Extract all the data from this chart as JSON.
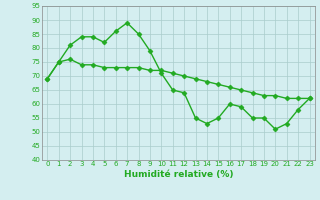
{
  "x": [
    0,
    1,
    2,
    3,
    4,
    5,
    6,
    7,
    8,
    9,
    10,
    11,
    12,
    13,
    14,
    15,
    16,
    17,
    18,
    19,
    20,
    21,
    22,
    23
  ],
  "line1": [
    69,
    75,
    81,
    84,
    84,
    82,
    86,
    89,
    85,
    79,
    71,
    65,
    64,
    55,
    53,
    55,
    60,
    59,
    55,
    55,
    51,
    53,
    58,
    62
  ],
  "line2": [
    69,
    75,
    76,
    74,
    74,
    73,
    73,
    73,
    73,
    72,
    72,
    71,
    70,
    69,
    68,
    67,
    66,
    65,
    64,
    63,
    63,
    62,
    62,
    62
  ],
  "line_color": "#22aa22",
  "bg_color": "#d4eef0",
  "grid_color": "#aacccc",
  "xlabel": "Humidité relative (%)",
  "ylim": [
    40,
    95
  ],
  "xlim": [
    -0.5,
    23.5
  ],
  "yticks": [
    40,
    45,
    50,
    55,
    60,
    65,
    70,
    75,
    80,
    85,
    90,
    95
  ],
  "xticks": [
    0,
    1,
    2,
    3,
    4,
    5,
    6,
    7,
    8,
    9,
    10,
    11,
    12,
    13,
    14,
    15,
    16,
    17,
    18,
    19,
    20,
    21,
    22,
    23
  ],
  "marker": "D",
  "markersize": 2.5,
  "linewidth": 1.0
}
